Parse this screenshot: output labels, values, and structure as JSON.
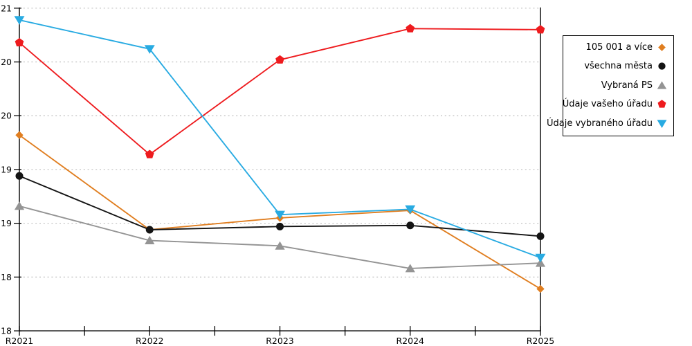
{
  "chart_data": {
    "type": "line",
    "title": "",
    "xlabel": "",
    "ylabel": "",
    "categories": [
      "R2021",
      "R2022",
      "R2023",
      "R2024",
      "R2025"
    ],
    "series": [
      {
        "key": "105-001-a-vice",
        "name": "105 001 a více",
        "color": "#E07E20",
        "marker": "diamond",
        "values": [
          19.82,
          18.94,
          19.05,
          19.12,
          18.39
        ]
      },
      {
        "key": "vsechna-mesta",
        "name": "všechna města",
        "color": "#141414",
        "marker": "circle",
        "values": [
          19.44,
          18.94,
          18.97,
          18.98,
          18.88
        ]
      },
      {
        "key": "vybrana-ps",
        "name": "Vybraná PS",
        "color": "#949494",
        "marker": "triangle-up",
        "values": [
          19.16,
          18.84,
          18.79,
          18.58,
          18.63
        ]
      },
      {
        "key": "udaje-vaseho-uradu",
        "name": "Údaje vašeho úřadu",
        "color": "#EE1B1E",
        "marker": "pentagon",
        "values": [
          20.68,
          19.64,
          20.52,
          20.81,
          20.8
        ]
      },
      {
        "key": "udaje-vybraneho-uradu",
        "name": "Údaje vybraného úřadu",
        "color": "#29ABE2",
        "marker": "triangle-down",
        "values": [
          20.89,
          20.62,
          19.08,
          19.13,
          18.68
        ]
      }
    ],
    "ylim": [
      18,
      21
    ],
    "ytick_step": 0.5,
    "yticks": [
      {
        "value": 18,
        "label": "18"
      },
      {
        "value": 18.5,
        "label": "18"
      },
      {
        "value": 19,
        "label": "19"
      },
      {
        "value": 19.5,
        "label": "19"
      },
      {
        "value": 20,
        "label": "20"
      },
      {
        "value": 20.5,
        "label": "20"
      },
      {
        "value": 21,
        "label": "21"
      }
    ],
    "x_minor_ticks": "midpoints-between-categories",
    "grid": "horizontal-dotted",
    "legend_position": "top-right-outside"
  },
  "colors": {
    "background": "#ffffff",
    "axis": "#000000",
    "grid": "#bdbdbd",
    "legend_border": "#000000"
  }
}
